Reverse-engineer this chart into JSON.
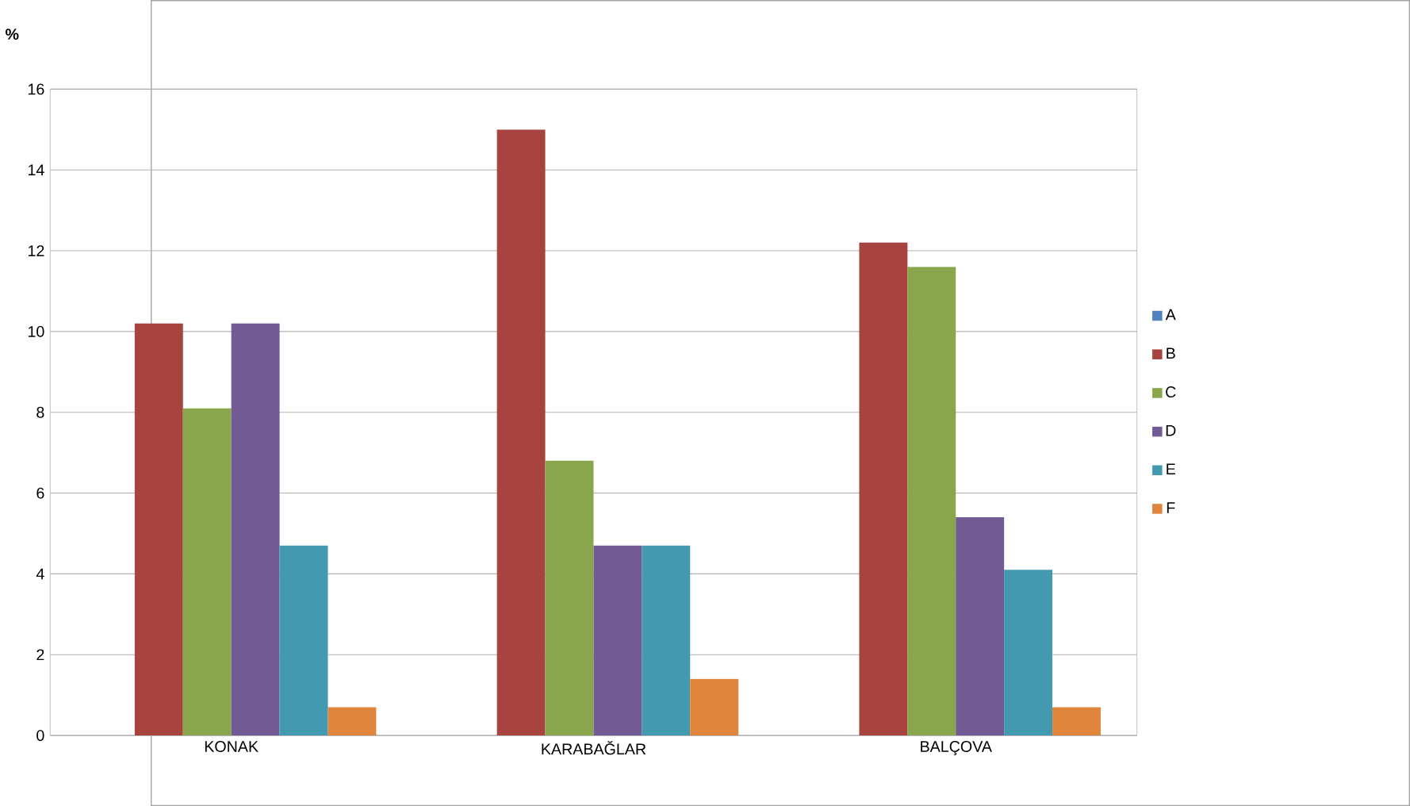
{
  "chart_data": {
    "type": "bar",
    "ylabel": "%",
    "categories": [
      "KONAK",
      "KARABAĞLAR",
      "BALÇOVA"
    ],
    "series": [
      {
        "name": "A",
        "color": "#4f81bd",
        "values": [
          0,
          0,
          0
        ]
      },
      {
        "name": "B",
        "color": "#a8443f",
        "values": [
          10.2,
          15.0,
          12.2
        ]
      },
      {
        "name": "C",
        "color": "#8aa64c",
        "values": [
          8.1,
          6.8,
          11.6
        ]
      },
      {
        "name": "D",
        "color": "#725a94",
        "values": [
          10.2,
          4.7,
          5.4
        ]
      },
      {
        "name": "E",
        "color": "#4399b0",
        "values": [
          4.7,
          4.7,
          4.1
        ]
      },
      {
        "name": "F",
        "color": "#e0853c",
        "values": [
          0.7,
          1.4,
          0.7
        ]
      }
    ],
    "ylim": [
      0,
      16
    ],
    "yticks": [
      0,
      2,
      4,
      6,
      8,
      10,
      12,
      14,
      16
    ],
    "grid": "y",
    "legend": "right"
  }
}
